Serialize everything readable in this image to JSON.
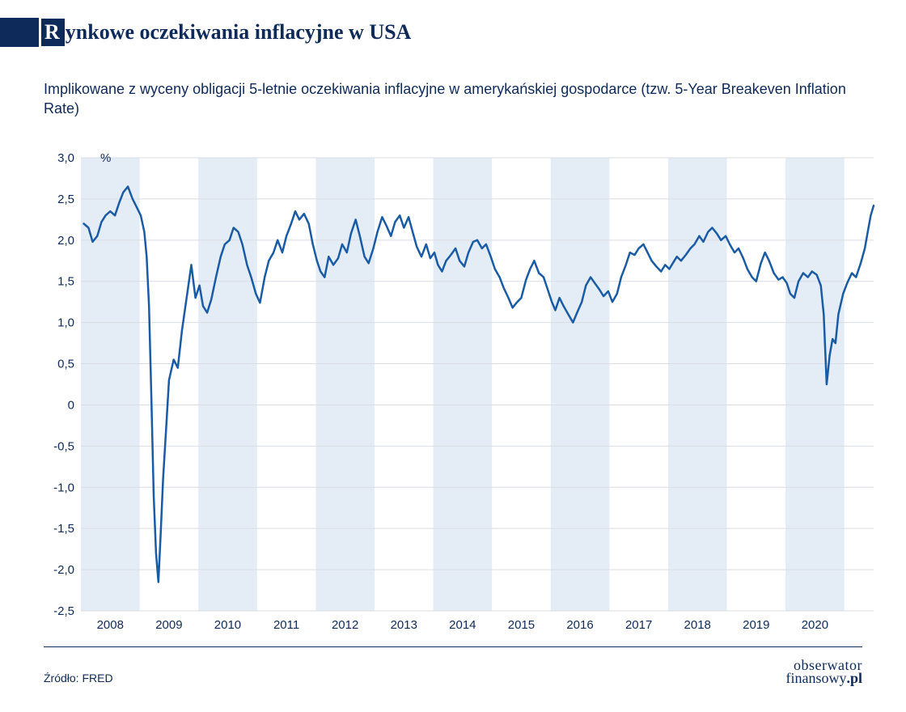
{
  "title": {
    "dropcap": "R",
    "rest": "ynkowe oczekiwania inflacyjne w USA",
    "color": "#0e2a5a",
    "stripe_color": "#0e2a5a",
    "fontsize": 26
  },
  "subtitle": {
    "text": "Implikowane z wyceny obligacji 5-letnie oczekiwania inflacyjne w amerykańskiej gospodarce (tzw. 5-Year Breakeven Inflation Rate)",
    "color": "#0e2a5a",
    "fontsize": 18
  },
  "chart": {
    "type": "line",
    "background_color": "#ffffff",
    "band_color": "#e4edf5",
    "grid_color": "#d9dde3",
    "line_color": "#1a5ba5",
    "line_width": 2.5,
    "ylim": [
      -2.5,
      3.0
    ],
    "ytick_step": 0.5,
    "ytick_labels": [
      "-2,5",
      "-2,0",
      "-1,5",
      "-1,0",
      "-0,5",
      "0",
      "0,5",
      "1,0",
      "1,5",
      "2,0",
      "2,5",
      "3,0"
    ],
    "y_suffix": "%",
    "x_years": [
      2008,
      2009,
      2010,
      2011,
      2012,
      2013,
      2014,
      2015,
      2016,
      2017,
      2018,
      2019,
      2020
    ],
    "x_range": [
      2007.5,
      2021.0
    ],
    "label_fontsize": 15,
    "label_color": "#0e2a5a",
    "series": [
      [
        2007.55,
        2.2
      ],
      [
        2007.63,
        2.15
      ],
      [
        2007.7,
        1.98
      ],
      [
        2007.78,
        2.05
      ],
      [
        2007.85,
        2.22
      ],
      [
        2007.92,
        2.3
      ],
      [
        2008.0,
        2.35
      ],
      [
        2008.08,
        2.3
      ],
      [
        2008.15,
        2.45
      ],
      [
        2008.22,
        2.58
      ],
      [
        2008.3,
        2.65
      ],
      [
        2008.38,
        2.5
      ],
      [
        2008.45,
        2.4
      ],
      [
        2008.52,
        2.3
      ],
      [
        2008.58,
        2.1
      ],
      [
        2008.62,
        1.8
      ],
      [
        2008.66,
        1.2
      ],
      [
        2008.7,
        0.1
      ],
      [
        2008.74,
        -1.1
      ],
      [
        2008.78,
        -1.8
      ],
      [
        2008.82,
        -2.15
      ],
      [
        2008.86,
        -1.55
      ],
      [
        2008.9,
        -0.9
      ],
      [
        2008.95,
        -0.3
      ],
      [
        2009.0,
        0.3
      ],
      [
        2009.08,
        0.55
      ],
      [
        2009.15,
        0.45
      ],
      [
        2009.22,
        0.9
      ],
      [
        2009.3,
        1.3
      ],
      [
        2009.38,
        1.7
      ],
      [
        2009.45,
        1.3
      ],
      [
        2009.52,
        1.45
      ],
      [
        2009.58,
        1.2
      ],
      [
        2009.65,
        1.12
      ],
      [
        2009.72,
        1.28
      ],
      [
        2009.8,
        1.55
      ],
      [
        2009.88,
        1.8
      ],
      [
        2009.95,
        1.95
      ],
      [
        2010.03,
        2.0
      ],
      [
        2010.1,
        2.15
      ],
      [
        2010.18,
        2.1
      ],
      [
        2010.25,
        1.95
      ],
      [
        2010.33,
        1.7
      ],
      [
        2010.4,
        1.55
      ],
      [
        2010.48,
        1.35
      ],
      [
        2010.55,
        1.24
      ],
      [
        2010.63,
        1.55
      ],
      [
        2010.7,
        1.75
      ],
      [
        2010.78,
        1.85
      ],
      [
        2010.85,
        2.0
      ],
      [
        2010.93,
        1.85
      ],
      [
        2011.0,
        2.05
      ],
      [
        2011.08,
        2.2
      ],
      [
        2011.15,
        2.35
      ],
      [
        2011.22,
        2.25
      ],
      [
        2011.3,
        2.32
      ],
      [
        2011.38,
        2.2
      ],
      [
        2011.45,
        1.95
      ],
      [
        2011.52,
        1.75
      ],
      [
        2011.58,
        1.62
      ],
      [
        2011.65,
        1.55
      ],
      [
        2011.72,
        1.8
      ],
      [
        2011.8,
        1.7
      ],
      [
        2011.88,
        1.78
      ],
      [
        2011.95,
        1.95
      ],
      [
        2012.03,
        1.85
      ],
      [
        2012.1,
        2.08
      ],
      [
        2012.18,
        2.25
      ],
      [
        2012.25,
        2.05
      ],
      [
        2012.33,
        1.8
      ],
      [
        2012.4,
        1.72
      ],
      [
        2012.48,
        1.9
      ],
      [
        2012.55,
        2.1
      ],
      [
        2012.63,
        2.28
      ],
      [
        2012.7,
        2.18
      ],
      [
        2012.78,
        2.05
      ],
      [
        2012.85,
        2.22
      ],
      [
        2012.93,
        2.3
      ],
      [
        2013.0,
        2.15
      ],
      [
        2013.08,
        2.28
      ],
      [
        2013.15,
        2.1
      ],
      [
        2013.22,
        1.92
      ],
      [
        2013.3,
        1.8
      ],
      [
        2013.38,
        1.95
      ],
      [
        2013.45,
        1.78
      ],
      [
        2013.52,
        1.85
      ],
      [
        2013.58,
        1.7
      ],
      [
        2013.65,
        1.62
      ],
      [
        2013.72,
        1.75
      ],
      [
        2013.8,
        1.82
      ],
      [
        2013.88,
        1.9
      ],
      [
        2013.95,
        1.75
      ],
      [
        2014.03,
        1.68
      ],
      [
        2014.1,
        1.85
      ],
      [
        2014.18,
        1.98
      ],
      [
        2014.25,
        2.0
      ],
      [
        2014.33,
        1.9
      ],
      [
        2014.4,
        1.95
      ],
      [
        2014.48,
        1.8
      ],
      [
        2014.55,
        1.65
      ],
      [
        2014.63,
        1.55
      ],
      [
        2014.7,
        1.42
      ],
      [
        2014.78,
        1.3
      ],
      [
        2014.85,
        1.18
      ],
      [
        2014.93,
        1.25
      ],
      [
        2015.0,
        1.3
      ],
      [
        2015.08,
        1.52
      ],
      [
        2015.15,
        1.65
      ],
      [
        2015.22,
        1.75
      ],
      [
        2015.3,
        1.6
      ],
      [
        2015.38,
        1.55
      ],
      [
        2015.45,
        1.4
      ],
      [
        2015.52,
        1.25
      ],
      [
        2015.58,
        1.15
      ],
      [
        2015.65,
        1.3
      ],
      [
        2015.72,
        1.2
      ],
      [
        2015.8,
        1.1
      ],
      [
        2015.88,
        1.0
      ],
      [
        2015.95,
        1.12
      ],
      [
        2016.03,
        1.25
      ],
      [
        2016.1,
        1.45
      ],
      [
        2016.18,
        1.55
      ],
      [
        2016.25,
        1.48
      ],
      [
        2016.33,
        1.4
      ],
      [
        2016.4,
        1.32
      ],
      [
        2016.48,
        1.38
      ],
      [
        2016.55,
        1.25
      ],
      [
        2016.63,
        1.35
      ],
      [
        2016.7,
        1.55
      ],
      [
        2016.78,
        1.7
      ],
      [
        2016.85,
        1.85
      ],
      [
        2016.93,
        1.82
      ],
      [
        2017.0,
        1.9
      ],
      [
        2017.08,
        1.95
      ],
      [
        2017.15,
        1.85
      ],
      [
        2017.22,
        1.75
      ],
      [
        2017.3,
        1.68
      ],
      [
        2017.38,
        1.62
      ],
      [
        2017.45,
        1.7
      ],
      [
        2017.52,
        1.65
      ],
      [
        2017.58,
        1.72
      ],
      [
        2017.65,
        1.8
      ],
      [
        2017.72,
        1.75
      ],
      [
        2017.8,
        1.82
      ],
      [
        2017.88,
        1.9
      ],
      [
        2017.95,
        1.95
      ],
      [
        2018.03,
        2.05
      ],
      [
        2018.1,
        1.98
      ],
      [
        2018.18,
        2.1
      ],
      [
        2018.25,
        2.15
      ],
      [
        2018.33,
        2.08
      ],
      [
        2018.4,
        2.0
      ],
      [
        2018.48,
        2.05
      ],
      [
        2018.55,
        1.95
      ],
      [
        2018.63,
        1.85
      ],
      [
        2018.7,
        1.9
      ],
      [
        2018.78,
        1.78
      ],
      [
        2018.85,
        1.65
      ],
      [
        2018.93,
        1.55
      ],
      [
        2019.0,
        1.5
      ],
      [
        2019.08,
        1.72
      ],
      [
        2019.15,
        1.85
      ],
      [
        2019.22,
        1.75
      ],
      [
        2019.3,
        1.6
      ],
      [
        2019.38,
        1.52
      ],
      [
        2019.45,
        1.55
      ],
      [
        2019.52,
        1.48
      ],
      [
        2019.58,
        1.35
      ],
      [
        2019.65,
        1.3
      ],
      [
        2019.72,
        1.5
      ],
      [
        2019.8,
        1.6
      ],
      [
        2019.88,
        1.55
      ],
      [
        2019.95,
        1.62
      ],
      [
        2020.03,
        1.58
      ],
      [
        2020.1,
        1.45
      ],
      [
        2020.15,
        1.1
      ],
      [
        2020.2,
        0.25
      ],
      [
        2020.25,
        0.6
      ],
      [
        2020.3,
        0.8
      ],
      [
        2020.35,
        0.75
      ],
      [
        2020.4,
        1.1
      ],
      [
        2020.48,
        1.35
      ],
      [
        2020.55,
        1.48
      ],
      [
        2020.63,
        1.6
      ],
      [
        2020.7,
        1.55
      ],
      [
        2020.78,
        1.72
      ],
      [
        2020.85,
        1.9
      ],
      [
        2020.9,
        2.1
      ],
      [
        2020.95,
        2.3
      ],
      [
        2021.0,
        2.42
      ]
    ]
  },
  "source": {
    "label": "Źródło: FRED",
    "fontsize": 14,
    "color": "#0e2a5a"
  },
  "logo": {
    "line1": "obserwator",
    "line2a": "finansowy",
    "line2b": ".pl",
    "color": "#0e2a5a"
  }
}
